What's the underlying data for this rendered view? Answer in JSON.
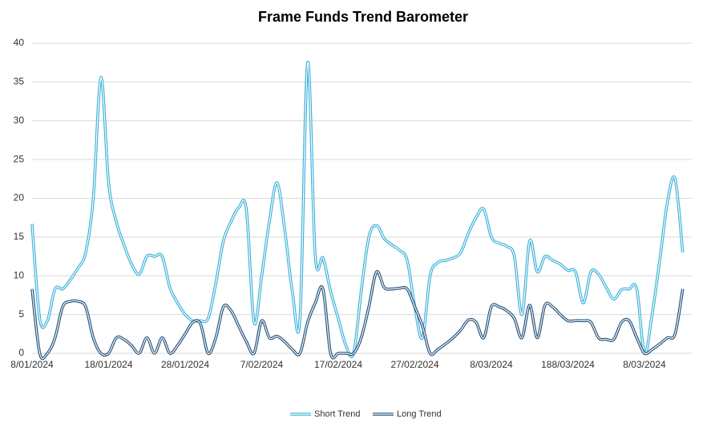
{
  "chart_data": {
    "type": "line",
    "title": "Frame Funds Trend Barometer",
    "categories": [
      "8/01/2024",
      null,
      null,
      null,
      null,
      null,
      null,
      null,
      null,
      null,
      "18/01/2024",
      null,
      null,
      null,
      null,
      null,
      null,
      null,
      null,
      null,
      "28/01/2024",
      null,
      null,
      null,
      null,
      null,
      null,
      null,
      null,
      null,
      "7/02/2024",
      null,
      null,
      null,
      null,
      null,
      null,
      null,
      null,
      null,
      "17/02/2024",
      null,
      null,
      null,
      null,
      null,
      null,
      null,
      null,
      null,
      "27/02/2024",
      null,
      null,
      null,
      null,
      null,
      null,
      null,
      null,
      null,
      "8/03/2024",
      null,
      null,
      null,
      null,
      null,
      null,
      null,
      null,
      null,
      "188/03/2024",
      null,
      null,
      null,
      null,
      null,
      null,
      null,
      null,
      null,
      "8/03/2024",
      null,
      null,
      null,
      null,
      null
    ],
    "series": [
      {
        "name": "Short Trend",
        "color": "#3ab0d8",
        "values": [
          16.7,
          4.5,
          4.2,
          8.3,
          8.3,
          9.5,
          11,
          13,
          20,
          35.6,
          22,
          17,
          14,
          11.5,
          10.2,
          12.5,
          12.5,
          12.5,
          8.5,
          6.5,
          5,
          4.2,
          4.2,
          4.5,
          9,
          14.5,
          17,
          18.8,
          18.5,
          4,
          10,
          17,
          22,
          16,
          8,
          4.5,
          37.5,
          12.5,
          12.3,
          8,
          4.5,
          1,
          0,
          8,
          15,
          16.5,
          14.8,
          14,
          13.3,
          12,
          6,
          2,
          10,
          11.7,
          12,
          12.3,
          13,
          15.5,
          17.5,
          18.6,
          15,
          14.2,
          13.8,
          12.5,
          5,
          14.5,
          10.5,
          12.5,
          12,
          11.5,
          10.7,
          10.5,
          6.5,
          10.5,
          10.2,
          8.5,
          7,
          8.2,
          8.3,
          8.3,
          0,
          5,
          12,
          19.5,
          22.5,
          13
        ]
      },
      {
        "name": "Long Trend",
        "color": "#1f4e79",
        "values": [
          8.3,
          0,
          0,
          2,
          6,
          6.7,
          6.7,
          6,
          2,
          0,
          0,
          2,
          1.8,
          1,
          0,
          2,
          0,
          2,
          0,
          1,
          2.5,
          4,
          3.8,
          0,
          2,
          6,
          5.5,
          3.5,
          1.5,
          0,
          4.2,
          2,
          2.2,
          1.5,
          0.5,
          0,
          4,
          6.5,
          8.3,
          0,
          0,
          0,
          0,
          2,
          6,
          10.5,
          8.5,
          8.3,
          8.4,
          8.3,
          6,
          3.5,
          0,
          0.5,
          1.2,
          2,
          3,
          4.3,
          4,
          2,
          6,
          6,
          5.5,
          4.5,
          2,
          6.2,
          2,
          6.2,
          6,
          5,
          4.2,
          4.2,
          4.2,
          4,
          2,
          1.8,
          1.8,
          4,
          4.2,
          2,
          0,
          0.5,
          1.2,
          2,
          2.5,
          8.3
        ]
      }
    ],
    "ylim": [
      0,
      40
    ],
    "yticks": [
      0,
      5,
      10,
      15,
      20,
      25,
      30,
      35,
      40
    ],
    "grid": true,
    "legend": "bottom"
  }
}
